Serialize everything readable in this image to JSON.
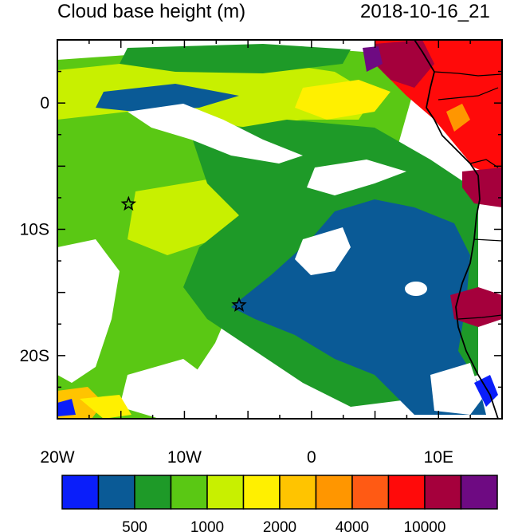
{
  "title": "Cloud base height (m)",
  "timestamp": "2018-10-16_21",
  "map": {
    "lon_range": [
      -20,
      15
    ],
    "lat_range": [
      -25,
      5
    ],
    "xticks": [
      {
        "value": -20,
        "label": "20W"
      },
      {
        "value": -10,
        "label": "10W"
      },
      {
        "value": 0,
        "label": "0"
      },
      {
        "value": 10,
        "label": "10E"
      }
    ],
    "yticks": [
      {
        "value": 0,
        "label": "0"
      },
      {
        "value": -10,
        "label": "10S"
      },
      {
        "value": -20,
        "label": "20S"
      }
    ],
    "markers": [
      {
        "name": "star-marker-north",
        "lon": -14.4,
        "lat": -8.0
      },
      {
        "name": "star-marker-south",
        "lon": -5.7,
        "lat": -16.0
      }
    ]
  },
  "colorbar": {
    "colors": [
      "#0a1efa",
      "#0a5a96",
      "#1e9a28",
      "#5ac814",
      "#c8f000",
      "#fff000",
      "#ffc400",
      "#ff9600",
      "#ff5a14",
      "#ff0a0a",
      "#a5003c",
      "#6e0a82"
    ],
    "labels": [
      "500",
      "1000",
      "2000",
      "4000",
      "10000"
    ]
  }
}
